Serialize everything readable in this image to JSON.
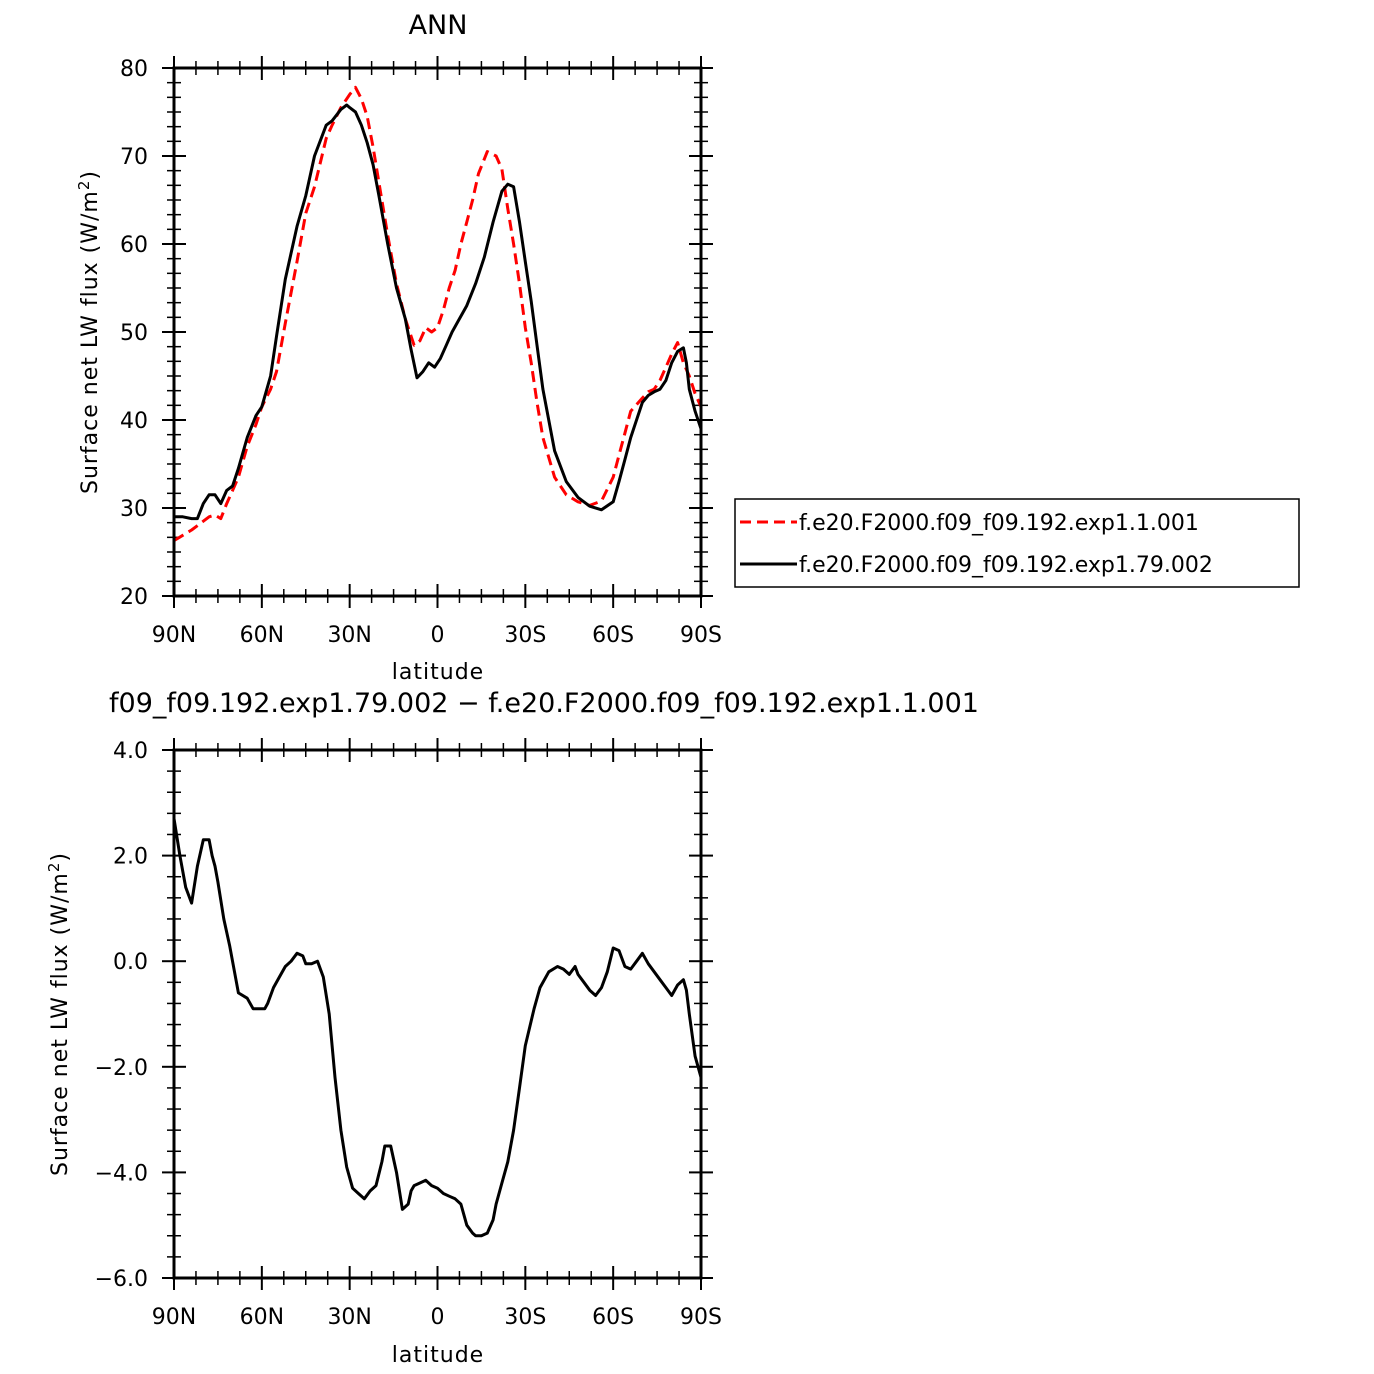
{
  "chart_data": [
    {
      "type": "line",
      "title": "ANN",
      "xlabel": "latitude",
      "ylabel": "Surface net LW flux (W/m",
      "ylabel_sup": "2",
      "ylabel_close": ")",
      "xlim": [
        90,
        -90
      ],
      "ylim": [
        20,
        80
      ],
      "x_ticks": [
        90,
        60,
        30,
        0,
        -30,
        -60,
        -90
      ],
      "x_tick_labels": [
        "90N",
        "60N",
        "30N",
        "0",
        "30S",
        "60S",
        "90S"
      ],
      "y_ticks": [
        20,
        30,
        40,
        50,
        60,
        70,
        80
      ],
      "y_tick_labels": [
        "20",
        "30",
        "40",
        "50",
        "60",
        "70",
        "80"
      ],
      "legend_position": "right",
      "grid": false,
      "series": [
        {
          "name": "f.e20.F2000.f09_f09.192.exp1.1.001",
          "color": "#ff0000",
          "dash": "dashed",
          "x": [
            90,
            84,
            80,
            78,
            76,
            74,
            72,
            70,
            68,
            65,
            62,
            60,
            57,
            55,
            52,
            48,
            45,
            42,
            38,
            36,
            33,
            30,
            28,
            26,
            24,
            22,
            20,
            17,
            14,
            11,
            8,
            6,
            4,
            2,
            0,
            -2,
            -4,
            -6,
            -8,
            -10,
            -12,
            -14,
            -17,
            -20,
            -22,
            -24,
            -26,
            -28,
            -30,
            -32,
            -34,
            -36,
            -40,
            -44,
            -48,
            -52,
            -56,
            -60,
            -62,
            -64,
            -66,
            -70,
            -72,
            -74,
            -76,
            -78,
            -80,
            -82,
            -84,
            -86,
            -88,
            -90
          ],
          "values": [
            26.3,
            27.5,
            28.5,
            29.0,
            29.2,
            28.8,
            30.5,
            32.0,
            33.5,
            37.0,
            39.5,
            41.5,
            43.5,
            45.5,
            51.0,
            58.0,
            63.5,
            66.5,
            72.0,
            73.5,
            75.5,
            77.0,
            77.8,
            76.5,
            74.5,
            71.0,
            67.0,
            61.0,
            55.5,
            51.5,
            48.5,
            49.0,
            50.5,
            50.0,
            50.5,
            52.5,
            55.0,
            57.0,
            60.0,
            62.5,
            65.0,
            68.0,
            70.5,
            70.0,
            68.5,
            64.0,
            60.0,
            55.5,
            50.5,
            46.5,
            42.0,
            38.0,
            33.5,
            31.5,
            30.7,
            30.3,
            30.8,
            33.5,
            36.0,
            38.5,
            41.0,
            42.5,
            43.2,
            43.5,
            44.5,
            46.0,
            47.5,
            48.8,
            46.5,
            45.0,
            43.0,
            41.5
          ]
        },
        {
          "name": "f.e20.F2000.f09_f09.192.exp1.79.002",
          "color": "#000000",
          "dash": "solid",
          "x": [
            90,
            87,
            84,
            82,
            80,
            78,
            76,
            74,
            72,
            70,
            68,
            65,
            62,
            60,
            57,
            55,
            52,
            48,
            45,
            42,
            38,
            36,
            33,
            31,
            30,
            28,
            26,
            24,
            22,
            20,
            17,
            14,
            11,
            9,
            7,
            5,
            3,
            1,
            -1,
            -3,
            -5,
            -7,
            -10,
            -13,
            -16,
            -19,
            -22,
            -24,
            -26,
            -28,
            -30,
            -32,
            -34,
            -36,
            -40,
            -44,
            -48,
            -52,
            -56,
            -60,
            -62,
            -64,
            -66,
            -70,
            -72,
            -74,
            -76,
            -78,
            -80,
            -82,
            -84,
            -85,
            -86,
            -88,
            -90
          ],
          "values": [
            29.0,
            29.0,
            28.8,
            28.8,
            30.5,
            31.5,
            31.5,
            30.5,
            32.0,
            32.5,
            34.5,
            38.0,
            40.5,
            41.5,
            45.0,
            49.5,
            56.0,
            62.0,
            65.5,
            70.0,
            73.5,
            74.0,
            75.3,
            75.8,
            75.5,
            75.0,
            73.5,
            71.5,
            69.0,
            65.5,
            60.0,
            55.0,
            51.5,
            48.0,
            44.8,
            45.5,
            46.5,
            46.0,
            47.0,
            48.5,
            50.0,
            51.2,
            53.0,
            55.5,
            58.5,
            62.5,
            66.0,
            66.8,
            66.5,
            62.5,
            58.0,
            53.5,
            48.5,
            43.5,
            36.5,
            33.0,
            31.2,
            30.2,
            29.8,
            30.7,
            33.0,
            35.5,
            38.0,
            42.0,
            42.8,
            43.2,
            43.5,
            44.5,
            46.5,
            47.8,
            48.2,
            46.5,
            43.5,
            41.0,
            39.0
          ]
        }
      ]
    },
    {
      "type": "line",
      "title": "f09_f09.192.exp1.79.002 − f.e20.F2000.f09_f09.192.exp1.1.001",
      "xlabel": "latitude",
      "ylabel": "Surface net LW flux (W/m",
      "ylabel_sup": "2",
      "ylabel_close": ")",
      "xlim": [
        90,
        -90
      ],
      "ylim": [
        -6,
        4
      ],
      "x_ticks": [
        90,
        60,
        30,
        0,
        -30,
        -60,
        -90
      ],
      "x_tick_labels": [
        "90N",
        "60N",
        "30N",
        "0",
        "30S",
        "60S",
        "90S"
      ],
      "y_ticks": [
        -6,
        -4,
        -2,
        0,
        2,
        4
      ],
      "y_tick_labels": [
        "−6.0",
        "−4.0",
        "−2.0",
        "0.0",
        "2.0",
        "4.0"
      ],
      "grid": false,
      "series": [
        {
          "color": "#000000",
          "dash": "solid",
          "x": [
            90,
            88,
            86,
            84,
            82,
            80,
            78,
            77,
            76,
            75,
            73,
            71,
            68,
            65,
            63,
            61,
            59,
            58,
            56,
            54,
            52,
            50,
            48,
            46,
            45,
            43,
            41,
            39,
            37,
            35,
            33,
            31,
            29,
            27,
            25,
            23,
            21,
            19,
            18,
            16,
            14,
            12,
            10,
            9,
            8,
            6,
            4,
            3,
            2,
            0,
            -2,
            -4,
            -6,
            -8,
            -10,
            -12,
            -13,
            -15,
            -17,
            -19,
            -20,
            -22,
            -24,
            -26,
            -28,
            -30,
            -33,
            -35,
            -38,
            -41,
            -43,
            -45,
            -47,
            -48,
            -50,
            -52,
            -54,
            -56,
            -58,
            -60,
            -62,
            -64,
            -66,
            -68,
            -70,
            -72,
            -74,
            -76,
            -78,
            -80,
            -82,
            -84,
            -85,
            -86,
            -88,
            -90
          ],
          "values": [
            2.7,
            2.0,
            1.4,
            1.1,
            1.8,
            2.3,
            2.3,
            2.0,
            1.8,
            1.5,
            0.8,
            0.3,
            -0.6,
            -0.7,
            -0.9,
            -0.9,
            -0.9,
            -0.8,
            -0.5,
            -0.3,
            -0.1,
            0.0,
            0.15,
            0.1,
            -0.05,
            -0.05,
            0.0,
            -0.3,
            -1.0,
            -2.2,
            -3.2,
            -3.9,
            -4.3,
            -4.4,
            -4.5,
            -4.35,
            -4.25,
            -3.8,
            -3.5,
            -3.5,
            -4.0,
            -4.7,
            -4.6,
            -4.35,
            -4.25,
            -4.2,
            -4.15,
            -4.2,
            -4.25,
            -4.3,
            -4.4,
            -4.45,
            -4.5,
            -4.6,
            -5.0,
            -5.15,
            -5.2,
            -5.2,
            -5.15,
            -4.9,
            -4.6,
            -4.2,
            -3.8,
            -3.2,
            -2.4,
            -1.6,
            -0.9,
            -0.5,
            -0.2,
            -0.1,
            -0.15,
            -0.25,
            -0.1,
            -0.25,
            -0.4,
            -0.55,
            -0.65,
            -0.5,
            -0.2,
            0.25,
            0.2,
            -0.1,
            -0.15,
            0.0,
            0.15,
            -0.05,
            -0.2,
            -0.35,
            -0.5,
            -0.65,
            -0.45,
            -0.35,
            -0.55,
            -1.0,
            -1.8,
            -2.2
          ]
        }
      ]
    }
  ]
}
